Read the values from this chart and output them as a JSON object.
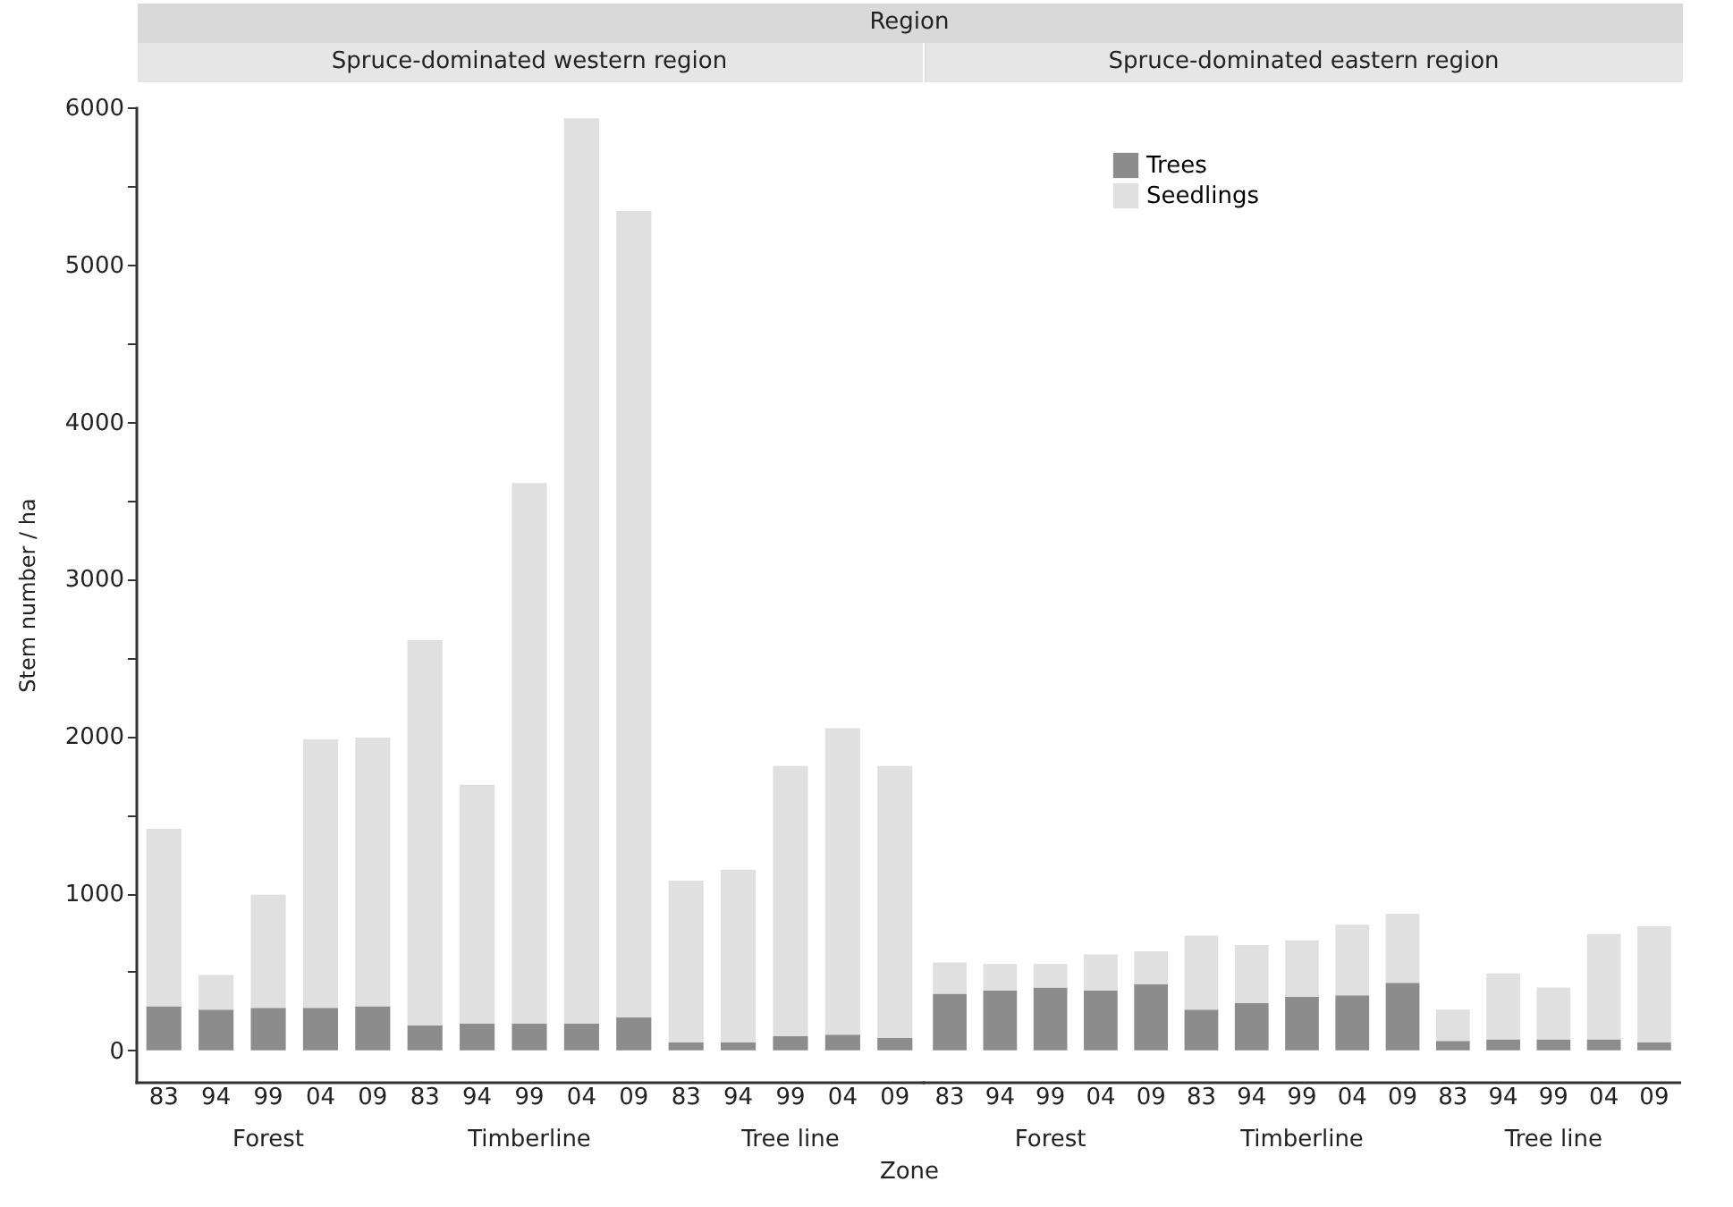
{
  "chart_data": [
    {
      "type": "bar",
      "title": "Region",
      "subtitle": "Spruce-dominated western region",
      "xlabel": "Zone",
      "ylabel": "Stem number / ha",
      "stacked": true,
      "legend": false,
      "categories": [
        "83",
        "94",
        "99",
        "04",
        "09",
        "83",
        "94",
        "99",
        "04",
        "09",
        "83",
        "94",
        "99",
        "04",
        "09"
      ],
      "annotations": [
        "Forest",
        "Timberline",
        "Tree line"
      ],
      "series": [
        {
          "color": "#8c8c8c",
          "values": [
            280,
            260,
            270,
            270,
            280,
            160,
            170,
            170,
            170,
            210,
            50,
            50,
            90,
            100,
            80
          ]
        },
        {
          "color": "#e0e0e0",
          "values": [
            1130,
            220,
            720,
            1710,
            1710,
            2450,
            1520,
            3440,
            5760,
            5130,
            1030,
            1100,
            1720,
            1950,
            1730
          ]
        }
      ],
      "ylim": [
        -200,
        6000
      ],
      "yticks": [
        0,
        {
          "value": 500,
          "label": null
        },
        1000,
        {
          "value": 1500,
          "label": null
        },
        2000,
        {
          "value": 2500,
          "label": null
        },
        3000,
        {
          "value": 3500,
          "label": null
        },
        4000,
        {
          "value": 4500,
          "label": null
        },
        5000,
        {
          "value": 5500,
          "label": null
        },
        6000
      ]
    },
    {
      "type": "bar",
      "subtitle": "Spruce-dominated eastern region",
      "stacked": true,
      "legend": "top",
      "tick_labels": "x",
      "categories": [
        "83",
        "94",
        "99",
        "04",
        "09",
        "83",
        "94",
        "99",
        "04",
        "09",
        "83",
        "94",
        "99",
        "04",
        "09"
      ],
      "annotations": [
        "Forest",
        "Timberline",
        "Tree line"
      ],
      "series": [
        {
          "name": "Trees",
          "color": "#8c8c8c",
          "values": [
            360,
            380,
            400,
            380,
            420,
            260,
            300,
            340,
            350,
            430,
            60,
            70,
            70,
            70,
            50
          ]
        },
        {
          "name": "Seedlings",
          "color": "#e0e0e0",
          "values": [
            200,
            170,
            150,
            230,
            210,
            470,
            370,
            360,
            450,
            440,
            200,
            420,
            330,
            670,
            740
          ]
        }
      ],
      "ylim": [
        -200,
        6000
      ]
    }
  ]
}
